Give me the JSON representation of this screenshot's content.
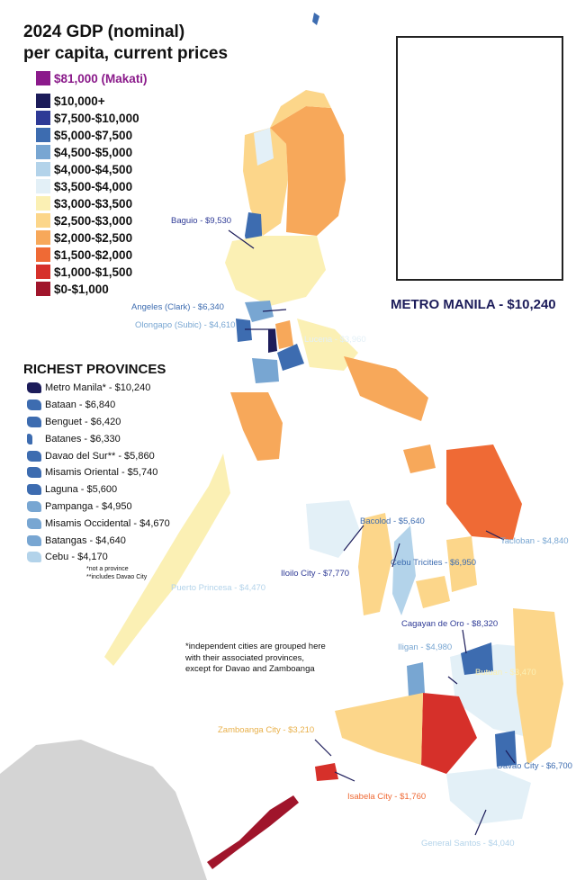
{
  "title_line1": "2024 GDP (nominal)",
  "title_line2": "per capita, current prices",
  "legend": [
    {
      "label": "$81,000 (Makati)",
      "color": "#8b1a8b"
    },
    {
      "label": "$10,000+",
      "color": "#1c1c5a"
    },
    {
      "label": "$7,500-$10,000",
      "color": "#2e3a96"
    },
    {
      "label": "$5,000-$7,500",
      "color": "#3d6cb0"
    },
    {
      "label": "$4,500-$5,000",
      "color": "#78a6d2"
    },
    {
      "label": "$4,000-$4,500",
      "color": "#b3d3ea"
    },
    {
      "label": "$3,500-$4,000",
      "color": "#e3f0f7"
    },
    {
      "label": "$3,000-$3,500",
      "color": "#fbf0b4"
    },
    {
      "label": "$2,500-$3,000",
      "color": "#fcd68a"
    },
    {
      "label": "$2,000-$2,500",
      "color": "#f7a85a"
    },
    {
      "label": "$1,500-$2,000",
      "color": "#ef6a35"
    },
    {
      "label": "$1,000-$1,500",
      "color": "#d6302a"
    },
    {
      "label": "$0-$1,000",
      "color": "#a0152b"
    }
  ],
  "inset_label": "METRO MANILA - $10,240",
  "richest_title": "RICHEST PROVINCES",
  "richest": [
    {
      "label": "Metro Manila* - $10,240",
      "color": "#1c1c5a"
    },
    {
      "label": "Bataan - $6,840",
      "color": "#3d6cb0"
    },
    {
      "label": "Benguet - $6,420",
      "color": "#3d6cb0"
    },
    {
      "label": "Batanes - $6,330",
      "color": "#3d6cb0"
    },
    {
      "label": "Davao del Sur** - $5,860",
      "color": "#3d6cb0"
    },
    {
      "label": "Misamis Oriental - $5,740",
      "color": "#3d6cb0"
    },
    {
      "label": "Laguna - $5,600",
      "color": "#3d6cb0"
    },
    {
      "label": "Pampanga - $4,950",
      "color": "#78a6d2"
    },
    {
      "label": "Misamis Occidental - $4,670",
      "color": "#78a6d2"
    },
    {
      "label": "Batangas - $4,640",
      "color": "#78a6d2"
    },
    {
      "label": "Cebu - $4,170",
      "color": "#b3d3ea"
    }
  ],
  "richest_note1": "*not a province",
  "richest_note2": "**includes Davao City",
  "note": "*independent cities are grouped here with their associated provinces, except for Davao and Zamboanga",
  "cities": [
    {
      "label": "Baguio - $9,530",
      "color": "#2e3a96"
    },
    {
      "label": "Angeles (Clark) - $6,340",
      "color": "#3d6cb0"
    },
    {
      "label": "Olongapo (Subic) - $4,610",
      "color": "#78a6d2"
    },
    {
      "label": "Lucena - $3,960",
      "color": "#e3f0f7"
    },
    {
      "label": "Bacolod - $5,640",
      "color": "#3d6cb0"
    },
    {
      "label": "Tacloban - $4,840",
      "color": "#78a6d2"
    },
    {
      "label": "Iloilo City - $7,770",
      "color": "#2e3a96"
    },
    {
      "label": "Cebu Tricities - $6,950",
      "color": "#3d6cb0"
    },
    {
      "label": "Puerto Princesa - $4,470",
      "color": "#b3d3ea"
    },
    {
      "label": "Cagayan de Oro - $8,320",
      "color": "#2e3a96"
    },
    {
      "label": "Iligan - $4,980",
      "color": "#78a6d2"
    },
    {
      "label": "Butuan - $3,470",
      "color": "#fbf0b4"
    },
    {
      "label": "Zamboanga City - $3,210",
      "color": "#e8b04a"
    },
    {
      "label": "Davao City - $6,700",
      "color": "#3d6cb0"
    },
    {
      "label": "Isabela City - $1,760",
      "color": "#ef6a35"
    },
    {
      "label": "General Santos - $4,040",
      "color": "#b3d3ea"
    }
  ]
}
